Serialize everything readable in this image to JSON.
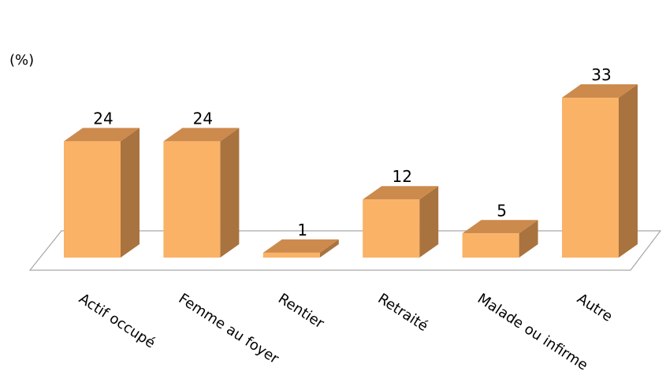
{
  "chart_data": {
    "type": "bar",
    "ylabel": "(%)",
    "categories": [
      "Actif occupé",
      "Femme au foyer",
      "Rentier",
      "Retraité",
      "Malade ou infirme",
      "Autre"
    ],
    "values": [
      24,
      24,
      1,
      12,
      5,
      33
    ],
    "data_labels": [
      "24",
      "24",
      "1",
      "12",
      "5",
      "33"
    ],
    "ylim": [
      0,
      33
    ],
    "style": "3d-column",
    "legend": "none",
    "grid": false
  },
  "colors": {
    "bar_front": "#FAB266",
    "bar_top": "#CD8A4D",
    "bar_side": "#A9733F",
    "floor_stroke": "#A6A6A6"
  }
}
